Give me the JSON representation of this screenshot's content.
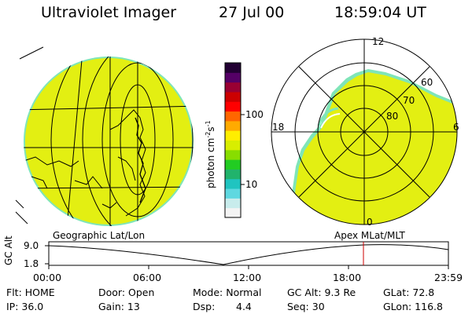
{
  "header": {
    "title": "Ultraviolet Imager",
    "date": "27 Jul 00",
    "time": "18:59:04 UT"
  },
  "colorbar": {
    "unit_label": "photon cm",
    "unit_exp1": "-2",
    "unit_s": "s",
    "unit_exp2": "-1",
    "tick_high": "100",
    "tick_low": "10",
    "colors": [
      "#f4f4f4",
      "#c8ecec",
      "#5fd8e0",
      "#20c4c0",
      "#21b36c",
      "#22cc22",
      "#88dd00",
      "#d8ee00",
      "#ffee00",
      "#ffaa00",
      "#ff6600",
      "#ff0000",
      "#cc0000",
      "#990033",
      "#550066",
      "#220033"
    ]
  },
  "polar_plot": {
    "label_top": "12",
    "label_left": "18",
    "label_right": "6",
    "label_bottom": "0",
    "ring_labels": [
      "60",
      "70",
      "80"
    ]
  },
  "map_labels": {
    "left": "Geographic Lat/Lon",
    "right": "Apex MLat/MLT"
  },
  "altitude_panel": {
    "ylabel": "GC Alt",
    "ymax": "9.0",
    "ymin": "1.8",
    "x_ticks": [
      "00:00",
      "06:00",
      "12:00",
      "18:00",
      "23:59"
    ]
  },
  "info": {
    "flt": "Flt:  HOME",
    "ip": "IP:  36.0",
    "door": "Door:  Open",
    "gain": "Gain:  13",
    "mode": "Mode:  Normal",
    "dsp_label": "Dsp:",
    "dsp_value": "4.4",
    "gcalt": "GC Alt:  9.3 Re",
    "seq": "Seq:  30",
    "glat": "GLat:  72.8",
    "glon": "GLon:  116.8"
  },
  "colors": {
    "image_fill": "#e3ef12",
    "image_edge": "#7fe5b8",
    "current_time_marker": "#cc0000"
  }
}
